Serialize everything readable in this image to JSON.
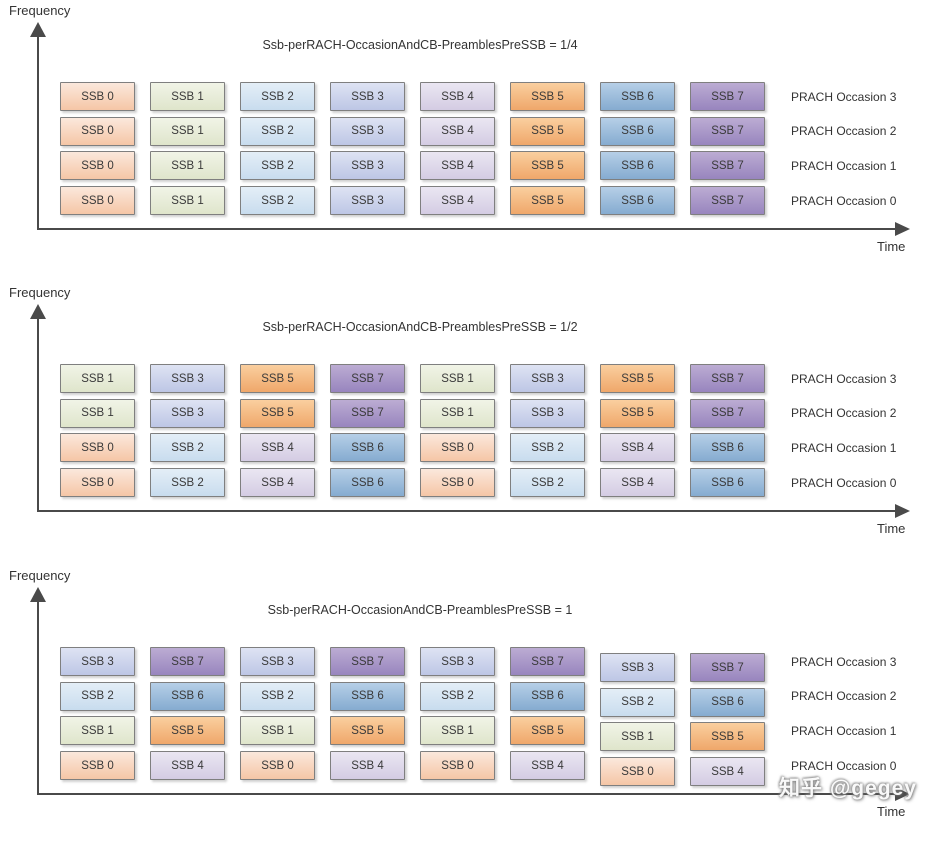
{
  "ssb_prefix": "SSB ",
  "ssb_colors": {
    "0": [
      "#FBE8DC",
      "#F5C6A6"
    ],
    "1": [
      "#F1F4E7",
      "#DFE5CB"
    ],
    "2": [
      "#E4EEF7",
      "#C8DCEE"
    ],
    "3": [
      "#DEE3F3",
      "#BDC6E5"
    ],
    "4": [
      "#EAE6F2",
      "#D4CCE3"
    ],
    "5": [
      "#FACF9F",
      "#EFA76A"
    ],
    "6": [
      "#B6CFE7",
      "#85ABD0"
    ],
    "7": [
      "#BCACD3",
      "#9885BE"
    ]
  },
  "axis_color": "#4a4a4a",
  "watermark": "知乎 @gegey",
  "diagrams": [
    {
      "title": "Ssb-perRACH-OccasionAndCB-PreamblesPreSSB = 1/4",
      "freq_label": "Frequency",
      "time_label": "Time",
      "occasion_labels": [
        "PRACH Occasion 3",
        "PRACH Occasion 2",
        "PRACH Occasion 1",
        "PRACH Occasion 0"
      ],
      "rows": [
        [
          0,
          1,
          2,
          3,
          4,
          5,
          6,
          7
        ],
        [
          0,
          1,
          2,
          3,
          4,
          5,
          6,
          7
        ],
        [
          0,
          1,
          2,
          3,
          4,
          5,
          6,
          7
        ],
        [
          0,
          1,
          2,
          3,
          4,
          5,
          6,
          7
        ]
      ],
      "shifted_cols": []
    },
    {
      "title": "Ssb-perRACH-OccasionAndCB-PreamblesPreSSB = 1/2",
      "freq_label": "Frequency",
      "time_label": "Time",
      "occasion_labels": [
        "PRACH Occasion 3",
        "PRACH Occasion 2",
        "PRACH Occasion 1",
        "PRACH Occasion 0"
      ],
      "rows": [
        [
          1,
          3,
          5,
          7,
          1,
          3,
          5,
          7
        ],
        [
          1,
          3,
          5,
          7,
          1,
          3,
          5,
          7
        ],
        [
          0,
          2,
          4,
          6,
          0,
          2,
          4,
          6
        ],
        [
          0,
          2,
          4,
          6,
          0,
          2,
          4,
          6
        ]
      ],
      "shifted_cols": []
    },
    {
      "title": "Ssb-perRACH-OccasionAndCB-PreamblesPreSSB = 1",
      "freq_label": "Frequency",
      "time_label": "Time",
      "occasion_labels": [
        "PRACH Occasion 3",
        "PRACH Occasion 2",
        "PRACH Occasion 1",
        "PRACH Occasion 0"
      ],
      "rows": [
        [
          3,
          7,
          3,
          7,
          3,
          7,
          3,
          7
        ],
        [
          2,
          6,
          2,
          6,
          2,
          6,
          2,
          6
        ],
        [
          1,
          5,
          1,
          5,
          1,
          5,
          1,
          5
        ],
        [
          0,
          4,
          0,
          4,
          0,
          4,
          0,
          4
        ]
      ],
      "shifted_cols": [
        6,
        7
      ]
    }
  ]
}
